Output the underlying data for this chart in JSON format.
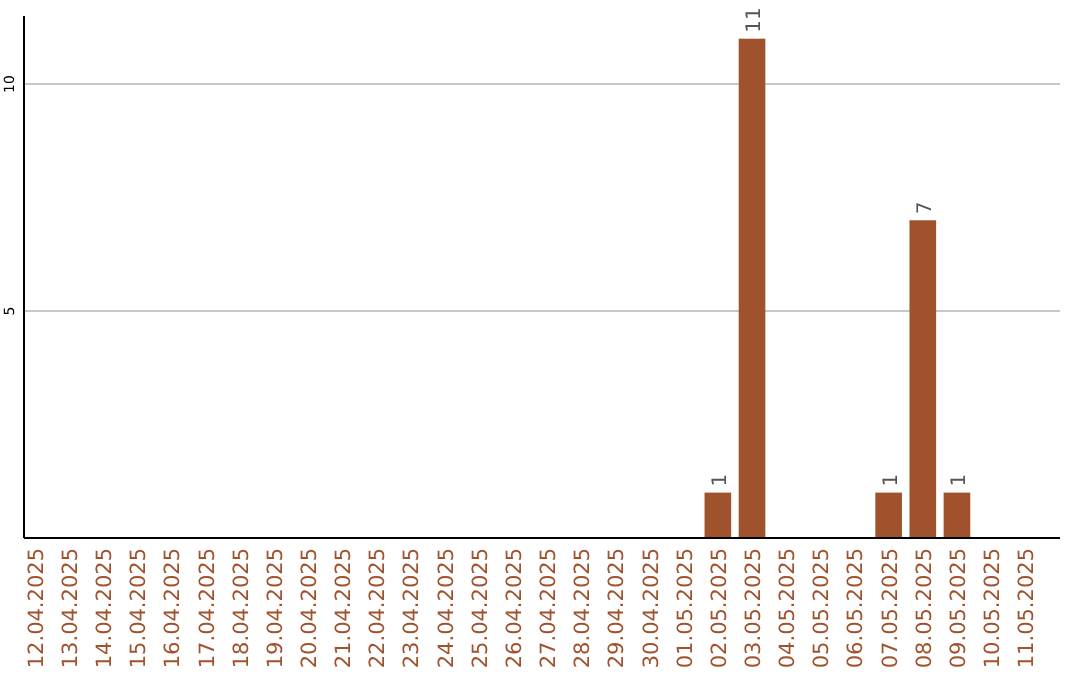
{
  "chart_data": {
    "type": "bar",
    "categories": [
      "12.04.2025",
      "13.04.2025",
      "14.04.2025",
      "15.04.2025",
      "16.04.2025",
      "17.04.2025",
      "18.04.2025",
      "19.04.2025",
      "20.04.2025",
      "21.04.2025",
      "22.04.2025",
      "23.04.2025",
      "24.04.2025",
      "25.04.2025",
      "26.04.2025",
      "27.04.2025",
      "28.04.2025",
      "29.04.2025",
      "30.04.2025",
      "01.05.2025",
      "02.05.2025",
      "03.05.2025",
      "04.05.2025",
      "05.05.2025",
      "06.05.2025",
      "07.05.2025",
      "08.05.2025",
      "09.05.2025",
      "10.05.2025",
      "11.05.2025"
    ],
    "values": [
      0,
      0,
      0,
      0,
      0,
      0,
      0,
      0,
      0,
      0,
      0,
      0,
      0,
      0,
      0,
      0,
      0,
      0,
      0,
      0,
      1,
      11,
      0,
      0,
      0,
      1,
      7,
      1,
      0,
      0
    ],
    "value_labels": [
      null,
      null,
      null,
      null,
      null,
      null,
      null,
      null,
      null,
      null,
      null,
      null,
      null,
      null,
      null,
      null,
      null,
      null,
      null,
      null,
      "1",
      "11",
      null,
      null,
      null,
      "1",
      "7",
      "1",
      null,
      null
    ],
    "color": "#a0522d",
    "ylim": [
      0,
      11.5
    ],
    "yticks": [
      5,
      10
    ],
    "grid": "y"
  }
}
